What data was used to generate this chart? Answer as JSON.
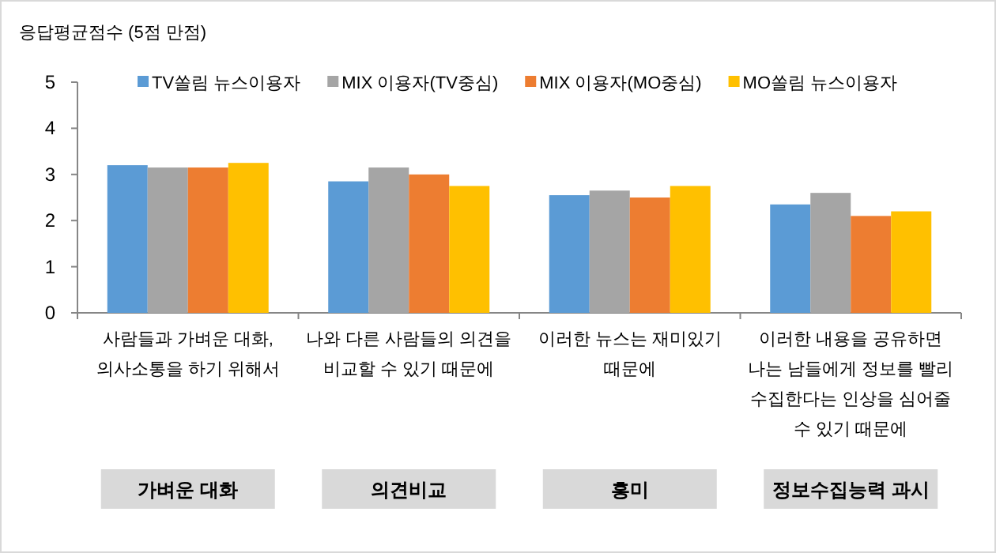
{
  "chart_data": {
    "type": "bar",
    "ylabel": "응답평균점수 (5점 만점)",
    "categories": [
      "사람들과 가벼운 대화, 의사소통을 하기 위해서",
      "나와 다른 사람들의 의견을 비교할 수 있기 때문에",
      "이러한 뉴스는 재미있기 때문에",
      "이러한 내용을 공유하면 나는 남들에게 정보를 빨리 수집한다는 인상을 심어줄 수 있기 때문에"
    ],
    "series": [
      {
        "name": "TV쏠림 뉴스이용자",
        "color": "#5b9bd5",
        "values": [
          3.2,
          2.85,
          2.55,
          2.35
        ]
      },
      {
        "name": "MIX 이용자(TV중심)",
        "color": "#a5a5a5",
        "values": [
          3.15,
          3.15,
          2.65,
          2.6
        ]
      },
      {
        "name": "MIX 이용자(MO중심)",
        "color": "#ed7d31",
        "values": [
          3.15,
          3.0,
          2.5,
          2.1
        ]
      },
      {
        "name": "MO쏠림 뉴스이용자",
        "color": "#ffc000",
        "values": [
          3.25,
          2.75,
          2.75,
          2.2
        ]
      }
    ],
    "annotations": [
      "가벼운 대화",
      "의견비교",
      "흥미",
      "정보수집능력 과시"
    ],
    "ylim": [
      0,
      5
    ],
    "yticks": [
      0,
      1,
      2,
      3,
      4,
      5
    ],
    "legend": "top"
  }
}
